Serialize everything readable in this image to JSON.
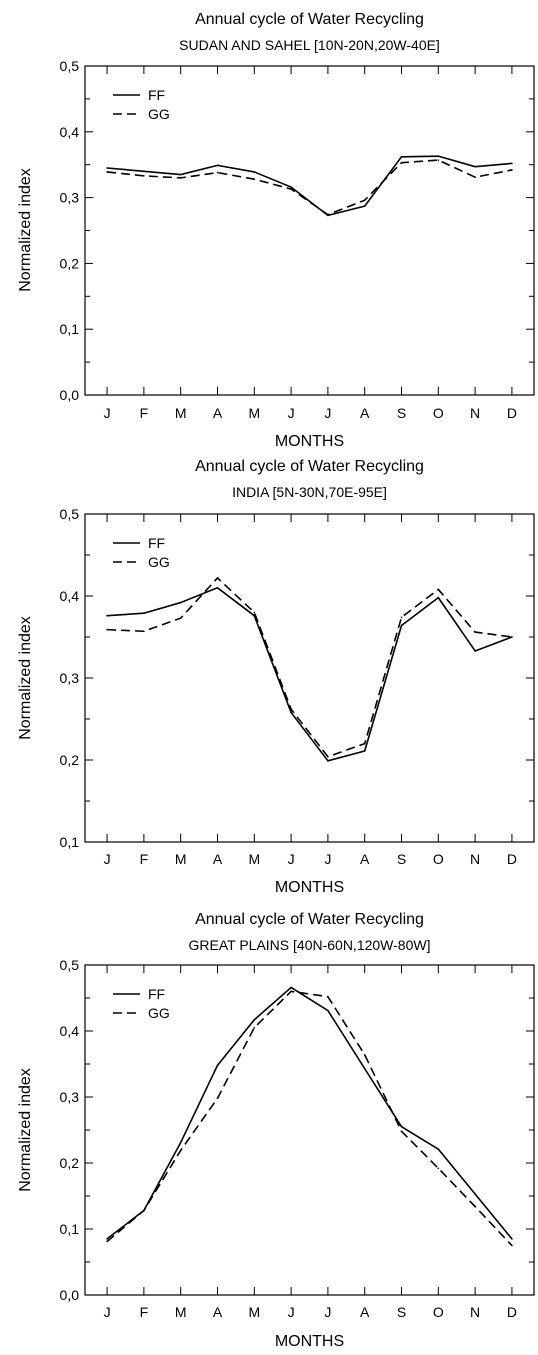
{
  "chart_data": [
    {
      "type": "line",
      "title": "Annual cycle of Water Recycling",
      "subtitle": "SUDAN AND SAHEL [10N-20N,20W-40E]",
      "xlabel": "MONTHS",
      "ylabel": "Normalized index",
      "categories": [
        "J",
        "F",
        "M",
        "A",
        "M",
        "J",
        "J",
        "A",
        "S",
        "O",
        "N",
        "D"
      ],
      "ylim": [
        0.0,
        0.5
      ],
      "yticks": [
        0.0,
        0.1,
        0.2,
        0.3,
        0.4,
        0.5
      ],
      "ytick_labels": [
        "0,0",
        "0,1",
        "0,2",
        "0,3",
        "0,4",
        "0,5"
      ],
      "legend_position": "top-left",
      "grid": false,
      "series": [
        {
          "name": "FF",
          "style": "solid",
          "values": [
            0.345,
            0.34,
            0.335,
            0.349,
            0.339,
            0.316,
            0.273,
            0.287,
            0.362,
            0.363,
            0.347,
            0.352
          ]
        },
        {
          "name": "GG",
          "style": "dashed",
          "values": [
            0.339,
            0.333,
            0.33,
            0.338,
            0.328,
            0.313,
            0.274,
            0.296,
            0.353,
            0.357,
            0.331,
            0.342
          ]
        }
      ]
    },
    {
      "type": "line",
      "title": "Annual cycle of Water Recycling",
      "subtitle": "INDIA [5N-30N,70E-95E]",
      "xlabel": "MONTHS",
      "ylabel": "Normalized index",
      "categories": [
        "J",
        "F",
        "M",
        "A",
        "M",
        "J",
        "J",
        "A",
        "S",
        "O",
        "N",
        "D"
      ],
      "ylim": [
        0.1,
        0.5
      ],
      "yticks": [
        0.1,
        0.2,
        0.3,
        0.4,
        0.5
      ],
      "ytick_labels": [
        "0,1",
        "0,2",
        "0,3",
        "0,4",
        "0,5"
      ],
      "legend_position": "top-left",
      "grid": false,
      "series": [
        {
          "name": "FF",
          "style": "solid",
          "values": [
            0.376,
            0.379,
            0.392,
            0.41,
            0.376,
            0.258,
            0.199,
            0.211,
            0.364,
            0.398,
            0.333,
            0.35
          ]
        },
        {
          "name": "GG",
          "style": "dashed",
          "values": [
            0.359,
            0.357,
            0.373,
            0.422,
            0.38,
            0.262,
            0.204,
            0.22,
            0.374,
            0.408,
            0.356,
            0.35
          ]
        }
      ]
    },
    {
      "type": "line",
      "title": "Annual cycle of Water Recycling",
      "subtitle": "GREAT PLAINS [40N-60N,120W-80W]",
      "xlabel": "MONTHS",
      "ylabel": "Normalized index",
      "categories": [
        "J",
        "F",
        "M",
        "A",
        "M",
        "J",
        "J",
        "A",
        "S",
        "O",
        "N",
        "D"
      ],
      "ylim": [
        0.0,
        0.5
      ],
      "yticks": [
        0.0,
        0.1,
        0.2,
        0.3,
        0.4,
        0.5
      ],
      "ytick_labels": [
        "0,0",
        "0,1",
        "0,2",
        "0,3",
        "0,4",
        "0,5"
      ],
      "legend_position": "top-left",
      "grid": false,
      "series": [
        {
          "name": "FF",
          "style": "solid",
          "values": [
            0.085,
            0.128,
            0.231,
            0.348,
            0.417,
            0.466,
            0.431,
            0.343,
            0.255,
            0.221,
            0.153,
            0.085
          ]
        },
        {
          "name": "GG",
          "style": "dashed",
          "values": [
            0.081,
            0.128,
            0.219,
            0.298,
            0.405,
            0.46,
            0.452,
            0.364,
            0.248,
            0.192,
            0.134,
            0.075
          ]
        }
      ]
    }
  ]
}
